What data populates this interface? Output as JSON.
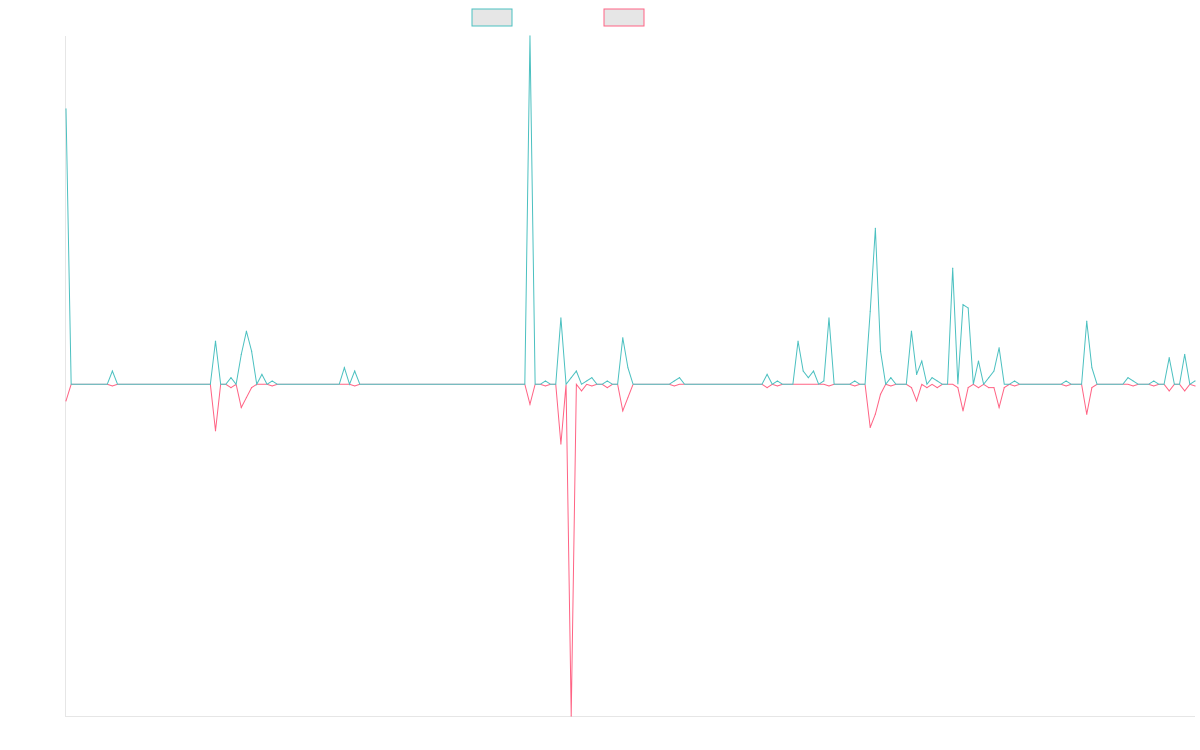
{
  "colors": {
    "series_a": "#4bc0c0",
    "series_b": "#ff6384",
    "swatch_fill": "#e6e6e6",
    "axis": "#e6e6e6"
  },
  "chart_data": {
    "type": "line",
    "title": "",
    "xlabel": "",
    "ylabel": "",
    "legend_position": "top-center",
    "grid": false,
    "x_count": 220,
    "ylim": [
      -100,
      105
    ],
    "series": [
      {
        "legend_label": "",
        "color": "#4bc0c0",
        "spikes": [
          [
            0,
            83
          ],
          [
            9,
            4
          ],
          [
            29,
            13
          ],
          [
            32,
            2
          ],
          [
            34,
            9
          ],
          [
            35,
            16
          ],
          [
            36,
            10
          ],
          [
            38,
            3
          ],
          [
            40,
            1
          ],
          [
            54,
            5
          ],
          [
            56,
            4
          ],
          [
            90,
            105
          ],
          [
            93,
            1
          ],
          [
            96,
            20
          ],
          [
            98,
            2
          ],
          [
            99,
            4
          ],
          [
            101,
            1
          ],
          [
            102,
            2
          ],
          [
            105,
            1
          ],
          [
            108,
            14
          ],
          [
            109,
            5
          ],
          [
            118,
            1
          ],
          [
            119,
            2
          ],
          [
            136,
            3
          ],
          [
            138,
            1
          ],
          [
            142,
            13
          ],
          [
            143,
            4
          ],
          [
            144,
            2
          ],
          [
            145,
            4
          ],
          [
            147,
            1
          ],
          [
            148,
            20
          ],
          [
            153,
            1
          ],
          [
            156,
            22
          ],
          [
            157,
            47
          ],
          [
            158,
            10
          ],
          [
            160,
            2
          ],
          [
            164,
            16
          ],
          [
            165,
            3
          ],
          [
            166,
            7
          ],
          [
            168,
            2
          ],
          [
            169,
            1
          ],
          [
            172,
            35
          ],
          [
            174,
            24
          ],
          [
            175,
            23
          ],
          [
            177,
            7
          ],
          [
            179,
            2
          ],
          [
            180,
            4
          ],
          [
            181,
            11
          ],
          [
            184,
            1
          ],
          [
            194,
            1
          ],
          [
            198,
            19
          ],
          [
            199,
            5
          ],
          [
            206,
            2
          ],
          [
            207,
            1
          ],
          [
            211,
            1
          ],
          [
            214,
            8
          ],
          [
            217,
            9
          ],
          [
            219,
            1
          ]
        ]
      },
      {
        "legend_label": "",
        "color": "#ff6384",
        "spikes": [
          [
            0,
            -5
          ],
          [
            9,
            -0.5
          ],
          [
            29,
            -14
          ],
          [
            32,
            -1
          ],
          [
            34,
            -7
          ],
          [
            35,
            -4
          ],
          [
            36,
            -1
          ],
          [
            40,
            -0.5
          ],
          [
            56,
            -0.5
          ],
          [
            90,
            -6
          ],
          [
            93,
            -0.5
          ],
          [
            96,
            -18
          ],
          [
            98,
            -100
          ],
          [
            100,
            -2
          ],
          [
            102,
            -0.5
          ],
          [
            105,
            -1
          ],
          [
            108,
            -8
          ],
          [
            109,
            -4
          ],
          [
            118,
            -0.5
          ],
          [
            136,
            -1
          ],
          [
            138,
            -0.5
          ],
          [
            148,
            -0.5
          ],
          [
            153,
            -0.5
          ],
          [
            156,
            -13
          ],
          [
            157,
            -9
          ],
          [
            158,
            -3
          ],
          [
            160,
            -0.5
          ],
          [
            164,
            -1
          ],
          [
            165,
            -5
          ],
          [
            167,
            -1
          ],
          [
            169,
            -1
          ],
          [
            173,
            -1
          ],
          [
            174,
            -8
          ],
          [
            175,
            -1
          ],
          [
            177,
            -1
          ],
          [
            179,
            -1
          ],
          [
            180,
            -1
          ],
          [
            181,
            -7
          ],
          [
            182,
            -1
          ],
          [
            184,
            -0.5
          ],
          [
            194,
            -0.5
          ],
          [
            198,
            -9
          ],
          [
            199,
            -1
          ],
          [
            207,
            -0.5
          ],
          [
            211,
            -0.5
          ],
          [
            214,
            -2
          ],
          [
            217,
            -2
          ],
          [
            219,
            -0.5
          ]
        ]
      }
    ]
  }
}
